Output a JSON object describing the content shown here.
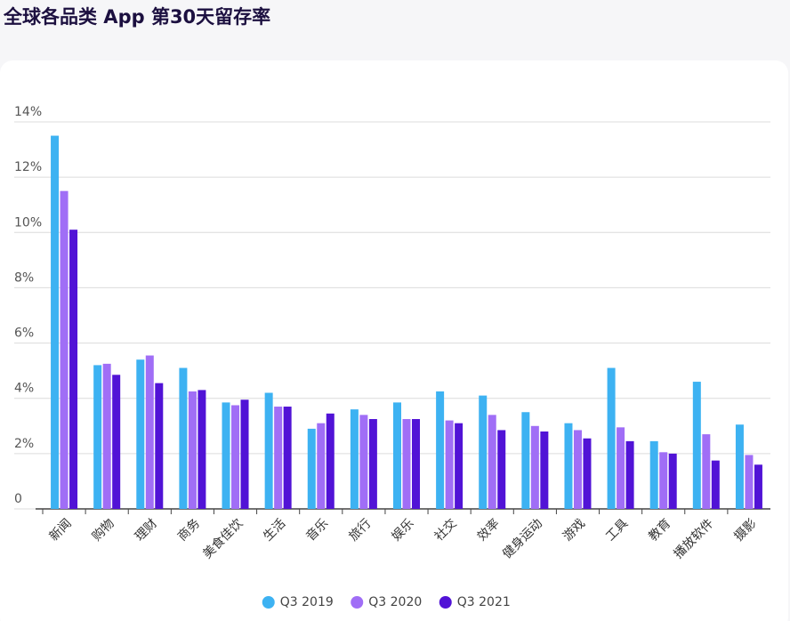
{
  "chart_data": {
    "type": "bar",
    "title": "全球各品类 App 第30天留存率",
    "categories": [
      "新闻",
      "购物",
      "理财",
      "商务",
      "美食佳饮",
      "生活",
      "音乐",
      "旅行",
      "娱乐",
      "社交",
      "效率",
      "健身运动",
      "游戏",
      "工具",
      "教育",
      "播放软件",
      "摄影"
    ],
    "series": [
      {
        "name": "Q3 2019",
        "color": "#3db2f2",
        "values": [
          13.5,
          5.2,
          5.4,
          5.1,
          3.85,
          4.2,
          2.9,
          3.6,
          3.85,
          4.25,
          4.1,
          3.5,
          3.1,
          5.1,
          2.45,
          4.6,
          3.05
        ]
      },
      {
        "name": "Q3 2020",
        "color": "#a06ef6",
        "values": [
          11.5,
          5.25,
          5.55,
          4.25,
          3.75,
          3.7,
          3.1,
          3.4,
          3.25,
          3.2,
          3.4,
          3.0,
          2.85,
          2.95,
          2.05,
          2.7,
          1.95
        ]
      },
      {
        "name": "Q3 2021",
        "color": "#5113d6",
        "values": [
          10.1,
          4.85,
          4.55,
          4.3,
          3.95,
          3.7,
          3.45,
          3.25,
          3.25,
          3.1,
          2.85,
          2.8,
          2.55,
          2.45,
          2.0,
          1.75,
          1.6
        ]
      }
    ],
    "ylim": [
      0,
      14
    ],
    "yticks": [
      0,
      {
        "value": 2,
        "label": "2%"
      },
      {
        "value": 4,
        "label": "4%"
      },
      {
        "value": 6,
        "label": "6%"
      },
      {
        "value": 8,
        "label": "8%"
      },
      {
        "value": 10,
        "label": "10%"
      },
      {
        "value": 12,
        "label": "12%"
      },
      {
        "value": 14,
        "label": "14%"
      }
    ],
    "grid": true,
    "legend": "bottom"
  }
}
